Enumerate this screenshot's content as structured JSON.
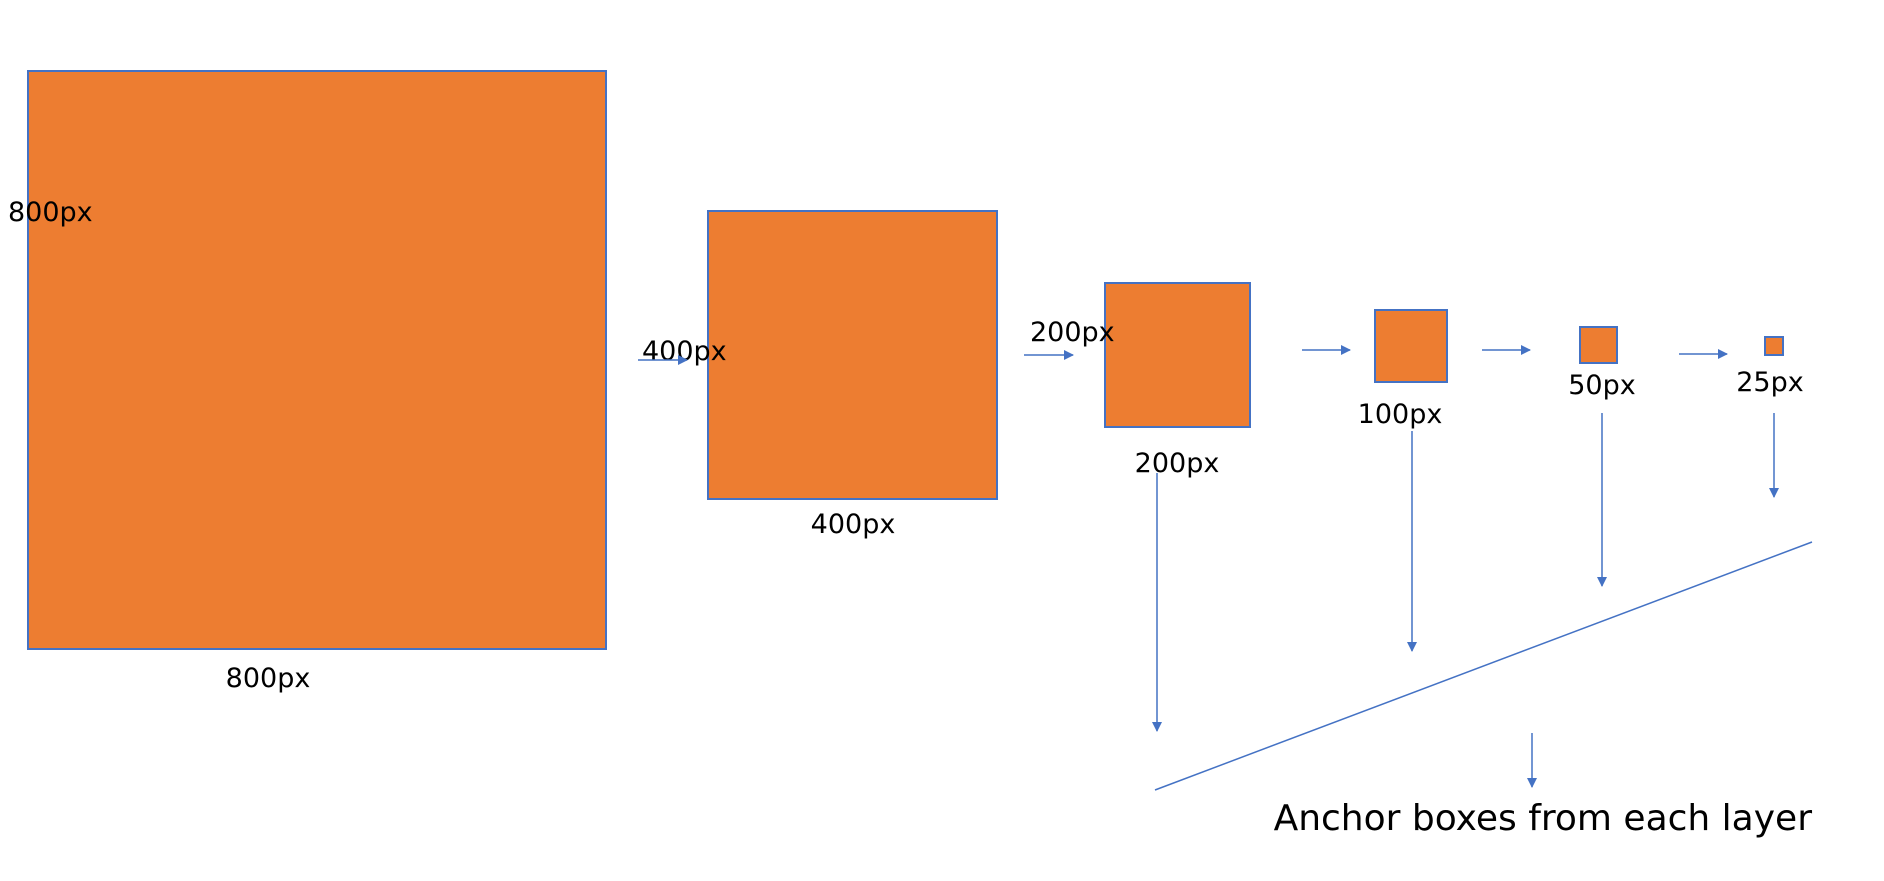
{
  "colors": {
    "box_fill": "#ED7D31",
    "box_stroke": "#4472C4",
    "arrow": "#4472C4",
    "text": "#000000"
  },
  "layers": [
    {
      "width_label": "800px",
      "height_label": "800px"
    },
    {
      "width_label": "400px",
      "height_label": "400px"
    },
    {
      "width_label": "200px",
      "height_label": "200px"
    },
    {
      "width_label": "100px"
    },
    {
      "width_label": "50px"
    },
    {
      "width_label": "25px"
    }
  ],
  "caption": "Anchor boxes from each layer"
}
